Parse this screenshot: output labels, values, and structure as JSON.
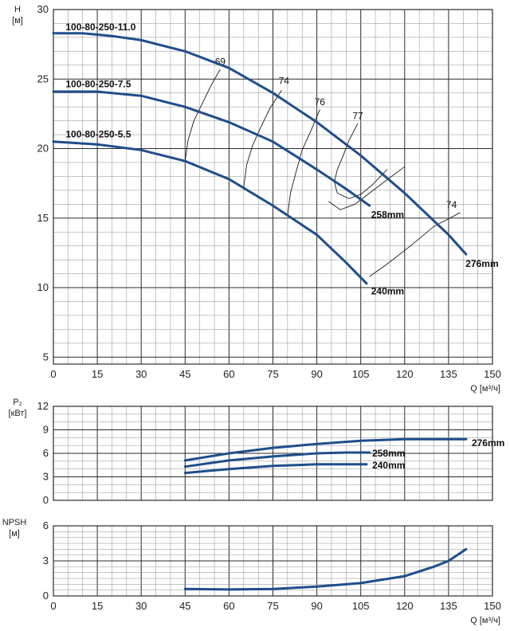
{
  "chart_data": [
    {
      "type": "line",
      "id": "head",
      "xlabel": "Q [м³/ч]",
      "ylabel_line1": "H",
      "ylabel_line2": "[м]",
      "xlim": [
        0,
        150
      ],
      "ylim": [
        4.5,
        30
      ],
      "x_ticks": [
        "0",
        "15",
        "30",
        "45",
        "60",
        "75",
        "90",
        "105",
        "120",
        "135",
        "150"
      ],
      "y_ticks": [
        {
          "v": 5,
          "t": "5"
        },
        {
          "v": 10,
          "t": "10"
        },
        {
          "v": 15,
          "t": "15"
        },
        {
          "v": 20,
          "t": "20"
        },
        {
          "v": 25,
          "t": "25"
        },
        {
          "v": 30,
          "t": "30"
        }
      ],
      "series": [
        {
          "name": "100-80-250-11.0",
          "diameter_label": "276mm",
          "points": [
            [
              0,
              28.3
            ],
            [
              10,
              28.3
            ],
            [
              20,
              28.1
            ],
            [
              30,
              27.8
            ],
            [
              45,
              27.0
            ],
            [
              60,
              25.8
            ],
            [
              75,
              24.0
            ],
            [
              90,
              21.9
            ],
            [
              105,
              19.5
            ],
            [
              120,
              16.8
            ],
            [
              135,
              13.8
            ],
            [
              141,
              12.4
            ]
          ]
        },
        {
          "name": "100-80-250-7.5",
          "diameter_label": "258mm",
          "points": [
            [
              0,
              24.1
            ],
            [
              15,
              24.1
            ],
            [
              30,
              23.8
            ],
            [
              45,
              23.0
            ],
            [
              60,
              21.9
            ],
            [
              75,
              20.5
            ],
            [
              90,
              18.5
            ],
            [
              100,
              17.1
            ],
            [
              108,
              15.9
            ]
          ]
        },
        {
          "name": "100-80-250-5.5",
          "diameter_label": "240mm",
          "points": [
            [
              0,
              20.5
            ],
            [
              15,
              20.3
            ],
            [
              30,
              19.9
            ],
            [
              45,
              19.1
            ],
            [
              60,
              17.8
            ],
            [
              75,
              15.9
            ],
            [
              90,
              13.8
            ],
            [
              100,
              11.8
            ],
            [
              107,
              10.3
            ]
          ]
        }
      ],
      "efficiency_labels": [
        "69",
        "74",
        "76",
        "77",
        "74"
      ],
      "iso_lines": [
        [
          [
            45,
            19.1
          ],
          [
            46,
            20.6
          ],
          [
            48,
            22.0
          ],
          [
            51,
            23.3
          ],
          [
            54,
            24.6
          ],
          [
            57,
            25.7
          ]
        ],
        [
          [
            65,
            17.2
          ],
          [
            66,
            18.8
          ],
          [
            68,
            20.2
          ],
          [
            71,
            21.6
          ],
          [
            74,
            22.9
          ],
          [
            78,
            24.2
          ]
        ],
        [
          [
            80,
            15.2
          ],
          [
            81,
            16.8
          ],
          [
            83,
            18.4
          ],
          [
            85,
            19.9
          ],
          [
            88,
            21.3
          ],
          [
            91,
            22.8
          ]
        ],
        [
          [
            97,
            16.8
          ],
          [
            96,
            17.6
          ],
          [
            97,
            18.5
          ],
          [
            99,
            19.5
          ],
          [
            101,
            20.6
          ],
          [
            104,
            21.8
          ]
        ],
        [
          [
            97,
            16.8
          ],
          [
            101,
            16.4
          ],
          [
            105,
            16.7
          ],
          [
            109,
            17.4
          ],
          [
            114,
            18.5
          ]
        ],
        [
          [
            94,
            16.2
          ],
          [
            98,
            15.6
          ],
          [
            103,
            16.0
          ],
          [
            108,
            16.8
          ],
          [
            113,
            17.6
          ],
          [
            120,
            18.7
          ]
        ],
        [
          [
            108,
            10.8
          ],
          [
            114,
            11.7
          ],
          [
            122,
            13.0
          ],
          [
            130,
            14.4
          ],
          [
            139,
            15.4
          ]
        ]
      ]
    },
    {
      "type": "line",
      "id": "power",
      "ylabel_line1": "P₂",
      "ylabel_line2": "[кВт]",
      "xlim": [
        0,
        150
      ],
      "ylim": [
        0,
        12
      ],
      "y_ticks": [
        {
          "v": 0,
          "t": "0"
        },
        {
          "v": 3,
          "t": "3"
        },
        {
          "v": 6,
          "t": "6"
        },
        {
          "v": 9,
          "t": "9"
        },
        {
          "v": 12,
          "t": "12"
        }
      ],
      "series": [
        {
          "name": "276mm",
          "points": [
            [
              45,
              5.1
            ],
            [
              60,
              6.0
            ],
            [
              75,
              6.7
            ],
            [
              90,
              7.2
            ],
            [
              105,
              7.6
            ],
            [
              120,
              7.8
            ],
            [
              135,
              7.8
            ],
            [
              141,
              7.8
            ]
          ]
        },
        {
          "name": "258mm",
          "points": [
            [
              45,
              4.3
            ],
            [
              60,
              5.1
            ],
            [
              75,
              5.6
            ],
            [
              90,
              6.0
            ],
            [
              100,
              6.1
            ],
            [
              108,
              6.1
            ]
          ]
        },
        {
          "name": "240mm",
          "points": [
            [
              45,
              3.5
            ],
            [
              60,
              4.0
            ],
            [
              75,
              4.4
            ],
            [
              90,
              4.6
            ],
            [
              100,
              4.6
            ],
            [
              107,
              4.6
            ]
          ]
        }
      ]
    },
    {
      "type": "line",
      "id": "npsh",
      "xlabel": "Q [м³/ч]",
      "ylabel_line1": "NPSH",
      "ylabel_line2": "[м]",
      "xlim": [
        0,
        150
      ],
      "ylim": [
        0,
        6
      ],
      "x_ticks": [
        "0",
        "15",
        "30",
        "45",
        "60",
        "75",
        "90",
        "105",
        "120",
        "135",
        "150"
      ],
      "y_ticks": [
        {
          "v": 0,
          "t": "0"
        },
        {
          "v": 3,
          "t": "3"
        },
        {
          "v": 6,
          "t": "6"
        }
      ],
      "series": [
        {
          "name": "",
          "points": [
            [
              45,
              0.6
            ],
            [
              60,
              0.55
            ],
            [
              75,
              0.6
            ],
            [
              90,
              0.8
            ],
            [
              105,
              1.1
            ],
            [
              120,
              1.7
            ],
            [
              130,
              2.5
            ],
            [
              135,
              3.0
            ],
            [
              141,
              4.0
            ]
          ]
        }
      ]
    }
  ]
}
